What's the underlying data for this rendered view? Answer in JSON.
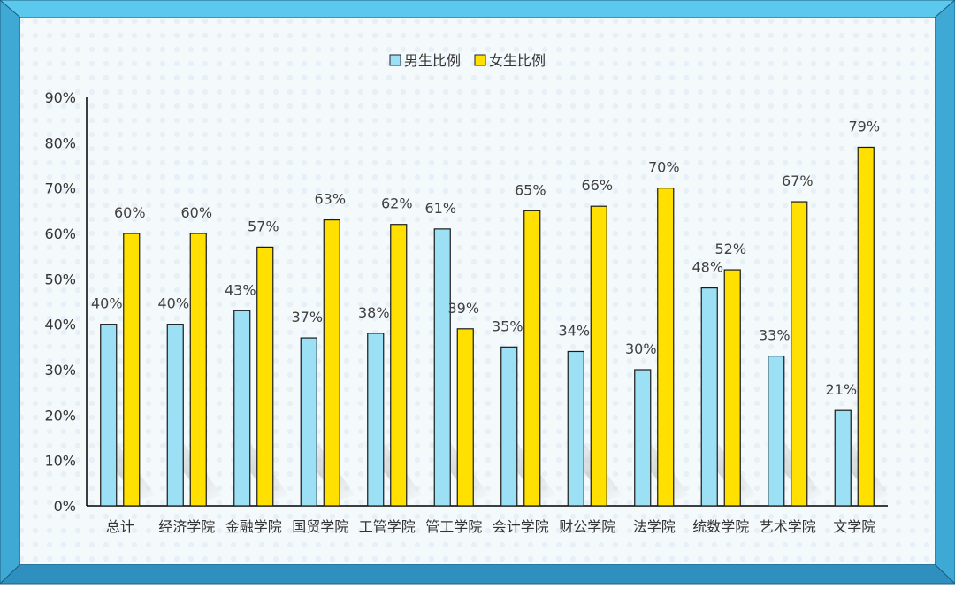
{
  "chart_data": {
    "type": "bar",
    "categories": [
      "总计",
      "经济学院",
      "金融学院",
      "国贸学院",
      "工管学院",
      "管工学院",
      "会计学院",
      "财公学院",
      "法学院",
      "统数学院",
      "艺术学院",
      "文学院"
    ],
    "series": [
      {
        "name": "男生比例",
        "color": "#9be0f5",
        "values": [
          40,
          40,
          43,
          37,
          38,
          61,
          35,
          34,
          30,
          48,
          33,
          21
        ]
      },
      {
        "name": "女生比例",
        "color": "#ffe000",
        "values": [
          60,
          60,
          57,
          63,
          62,
          39,
          65,
          66,
          70,
          52,
          67,
          79
        ]
      }
    ],
    "data_labels": {
      "male": [
        "40%",
        "40%",
        "43%",
        "37%",
        "38%",
        "61%",
        "35%",
        "34%",
        "30%",
        "48%",
        "33%",
        "21%"
      ],
      "female": [
        "60%",
        "60%",
        "57%",
        "63%",
        "62%",
        "39%",
        "65%",
        "66%",
        "70%",
        "52%",
        "67%",
        "79%"
      ]
    },
    "y_ticks": [
      "0%",
      "10%",
      "20%",
      "30%",
      "40%",
      "50%",
      "60%",
      "70%",
      "80%",
      "90%"
    ],
    "ylim": [
      0,
      90
    ],
    "title": "",
    "xlabel": "",
    "ylabel": "",
    "legend_position": "top-center",
    "grid": false
  },
  "frame_colors": {
    "border_top": "#5bc8ee",
    "border_side": "#3fa9d6",
    "border_bottom": "#2f8fbf",
    "plot_background": "#f4f9fc"
  }
}
